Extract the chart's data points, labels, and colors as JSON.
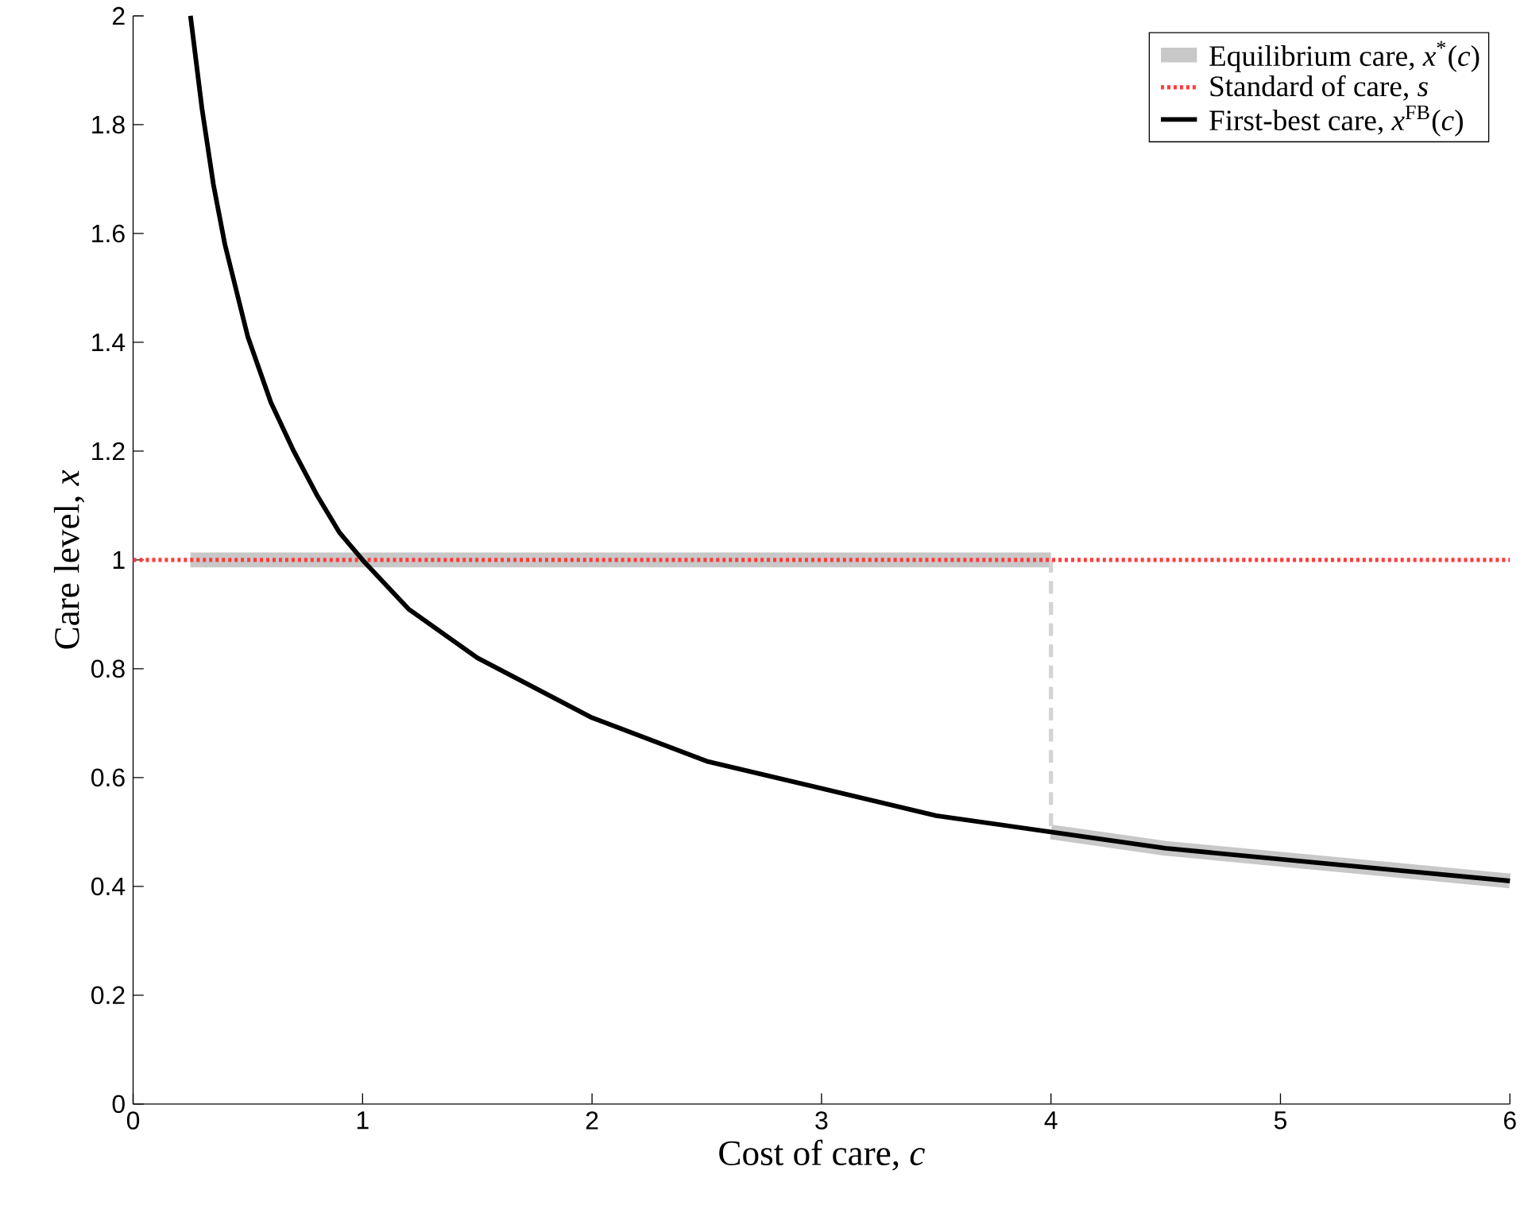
{
  "chart_data": {
    "type": "line",
    "xlabel": "Cost of care, *c*",
    "ylabel": "Care level, *x*",
    "xlim": [
      0,
      6
    ],
    "ylim": [
      0,
      2
    ],
    "xticks": [
      0,
      1,
      2,
      3,
      4,
      5,
      6
    ],
    "yticks": [
      0,
      {
        "value": 0.2,
        "label": "0.2"
      },
      {
        "value": 0.4,
        "label": "0.4"
      },
      {
        "value": 0.6,
        "label": "0.6"
      },
      {
        "value": 0.8,
        "label": "0.8"
      },
      1,
      {
        "value": 1.2,
        "label": "1.2"
      },
      {
        "value": 1.4,
        "label": "1.4"
      },
      {
        "value": 1.6,
        "label": "1.6"
      },
      {
        "value": 1.8,
        "label": "1.8"
      },
      2
    ],
    "legend": "top right",
    "grid": false,
    "marker": "none",
    "series": [
      {
        "name": "Equilibrium care, *x*$^{*}$(*c*)",
        "color": "#c8c8c8",
        "line_style": "solid",
        "x": [
          0.25,
          4
        ],
        "values": [
          1,
          1
        ]
      },
      {
        "color": "#c8c8c8",
        "line_style": "solid",
        "x": [
          4,
          4.5,
          5,
          5.5,
          6
        ],
        "values": [
          0.5,
          0.47,
          0.45,
          0.43,
          0.41
        ]
      },
      {
        "color": "#d4d4d4",
        "line_style": "dashed",
        "x": [
          4,
          4
        ],
        "values": [
          1,
          0.5
        ]
      },
      {
        "name": "Standard of care, *s*",
        "color": "#ff3b3b",
        "line_style": "dotted",
        "x": [
          0,
          6
        ],
        "values": [
          1,
          1
        ]
      },
      {
        "name": "First-best care, *x*$^{FB}$(*c*)",
        "color": "#000000",
        "line_style": "solid",
        "x": [
          0.25,
          0.3,
          0.35,
          0.4,
          0.5,
          0.6,
          0.7,
          0.8,
          0.9,
          1,
          1.2,
          1.5,
          2,
          2.5,
          3,
          3.5,
          4,
          4.5,
          5,
          5.5,
          6
        ],
        "values": [
          2,
          1.83,
          1.69,
          1.58,
          1.41,
          1.29,
          1.2,
          1.12,
          1.05,
          1,
          0.91,
          0.82,
          0.71,
          0.63,
          0.58,
          0.53,
          0.5,
          0.47,
          0.45,
          0.43,
          0.41
        ]
      }
    ]
  }
}
